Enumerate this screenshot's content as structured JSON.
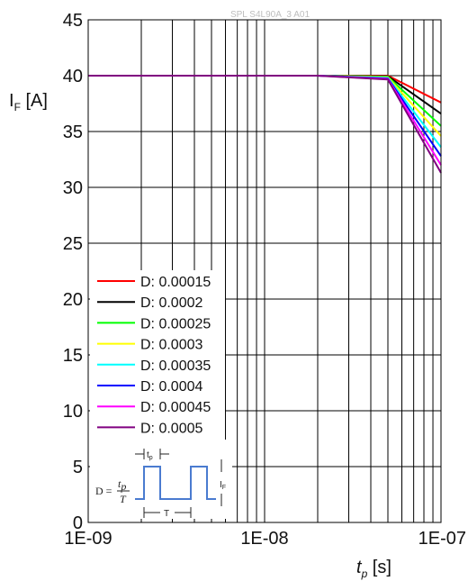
{
  "watermark": "SPL S4L90A_3 A01",
  "chart_data": {
    "type": "line",
    "x_scale": "log",
    "xlim": [
      1e-09,
      1e-07
    ],
    "ylim": [
      0,
      45
    ],
    "x_ticks": [
      {
        "value": 1e-09,
        "label": "1E-09"
      },
      {
        "value": 1e-08,
        "label": "1E-08"
      },
      {
        "value": 1e-07,
        "label": "1E-07"
      }
    ],
    "y_ticks": [
      0,
      5,
      10,
      15,
      20,
      25,
      30,
      35,
      40,
      45
    ],
    "grid": true,
    "legend_position": "bottom-left",
    "x": [
      1e-09,
      2e-08,
      5e-08,
      1e-07
    ],
    "series": [
      {
        "name": "D: 0.00015",
        "color": "#ff0000",
        "values": [
          40,
          40,
          40,
          37.6
        ]
      },
      {
        "name": "D: 0.0002",
        "color": "#000000",
        "values": [
          40,
          40,
          39.95,
          36.6
        ]
      },
      {
        "name": "D: 0.00025",
        "color": "#00ff00",
        "values": [
          40,
          40,
          39.9,
          35.5
        ]
      },
      {
        "name": "D: 0.0003",
        "color": "#ffff00",
        "values": [
          40,
          40,
          39.85,
          34.6
        ]
      },
      {
        "name": "D: 0.00035",
        "color": "#00ffff",
        "values": [
          40,
          40,
          39.8,
          33.6
        ]
      },
      {
        "name": "D: 0.0004",
        "color": "#0000ff",
        "values": [
          40,
          40,
          39.75,
          32.8
        ]
      },
      {
        "name": "D: 0.00045",
        "color": "#ff00ff",
        "values": [
          40,
          40,
          39.7,
          32.0
        ]
      },
      {
        "name": "D: 0.0005",
        "color": "#800080",
        "values": [
          40,
          40,
          39.65,
          31.3
        ]
      }
    ],
    "inset": {
      "d_label": "D =",
      "tp_label": "t",
      "tp_sub": "p",
      "T_label": "T",
      "tp_dim": "t",
      "tp_dim_sub": "p",
      "period_label": "T",
      "current_label": "I",
      "current_sub": "F"
    }
  },
  "ylabel": {
    "main": "I",
    "sub": "F",
    "unit": " [A]"
  },
  "xlabel": {
    "main": "t",
    "sub": "p",
    "unit": " [s]"
  }
}
